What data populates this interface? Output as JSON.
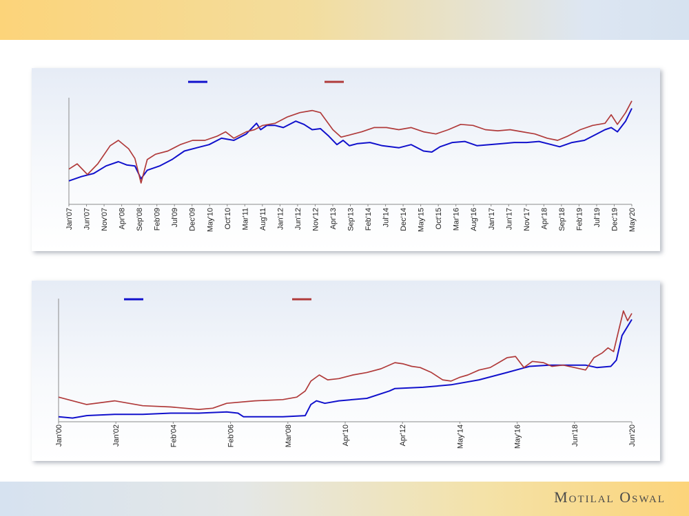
{
  "footer": {
    "brand": "Motilal Oswal"
  },
  "colors": {
    "series_blue": "#1010cc",
    "series_red": "#b03a3a",
    "axis": "#8a8a8a"
  },
  "chart_data": [
    {
      "type": "line",
      "title": "",
      "xlabel": "",
      "ylabel": "",
      "x_ticks": [
        "Jan'07",
        "Jun'07",
        "Nov'07",
        "Apr'08",
        "Sep'08",
        "Feb'09",
        "Jul'09",
        "Dec'09",
        "May'10",
        "Oct'10",
        "Mar'11",
        "Aug'11",
        "Jan'12",
        "Jun'12",
        "Nov'12",
        "Apr'13",
        "Sep'13",
        "Feb'14",
        "Jul'14",
        "Dec'14",
        "May'15",
        "Oct'15",
        "Mar'16",
        "Aug'16",
        "Jan'17",
        "Jun'17",
        "Nov'17",
        "Apr'18",
        "Sep'18",
        "Feb'19",
        "Jul'19",
        "Dec'19",
        "May'20"
      ],
      "x_range": [
        2007.0,
        2020.65
      ],
      "ylim": [
        0,
        100
      ],
      "legend": "top",
      "grid": false,
      "series": [
        {
          "color": "#1010cc",
          "x": [
            2007.0,
            2007.3,
            2007.6,
            2007.9,
            2008.2,
            2008.4,
            2008.6,
            2008.75,
            2008.9,
            2009.2,
            2009.5,
            2009.8,
            2010.1,
            2010.4,
            2010.7,
            2011.0,
            2011.3,
            2011.55,
            2011.65,
            2011.8,
            2012.0,
            2012.2,
            2012.5,
            2012.7,
            2012.9,
            2013.1,
            2013.3,
            2013.5,
            2013.65,
            2013.8,
            2014.0,
            2014.3,
            2014.6,
            2015.0,
            2015.3,
            2015.6,
            2015.8,
            2016.0,
            2016.3,
            2016.6,
            2016.9,
            2017.2,
            2017.5,
            2017.8,
            2018.1,
            2018.4,
            2018.7,
            2018.9,
            2019.2,
            2019.5,
            2019.8,
            2020.0,
            2020.15,
            2020.3,
            2020.5,
            2020.65
          ],
          "y": [
            22,
            26,
            29,
            36,
            40,
            37,
            36,
            24,
            32,
            36,
            42,
            50,
            53,
            56,
            62,
            60,
            66,
            76,
            70,
            74,
            74,
            72,
            78,
            75,
            70,
            71,
            64,
            56,
            60,
            55,
            57,
            58,
            55,
            53,
            56,
            50,
            49,
            54,
            58,
            59,
            55,
            56,
            57,
            58,
            58,
            59,
            56,
            54,
            58,
            60,
            66,
            70,
            72,
            68,
            78,
            90
          ]
        },
        {
          "color": "#b03a3a",
          "x": [
            2007.0,
            2007.2,
            2007.45,
            2007.7,
            2008.0,
            2008.2,
            2008.45,
            2008.6,
            2008.75,
            2008.9,
            2009.1,
            2009.4,
            2009.7,
            2010.0,
            2010.3,
            2010.6,
            2010.8,
            2011.0,
            2011.3,
            2011.5,
            2011.7,
            2012.0,
            2012.3,
            2012.6,
            2012.9,
            2013.1,
            2013.25,
            2013.4,
            2013.6,
            2013.8,
            2014.1,
            2014.4,
            2014.7,
            2015.0,
            2015.3,
            2015.6,
            2015.9,
            2016.2,
            2016.5,
            2016.8,
            2017.1,
            2017.4,
            2017.7,
            2018.0,
            2018.3,
            2018.6,
            2018.85,
            2019.1,
            2019.4,
            2019.7,
            2020.0,
            2020.15,
            2020.3,
            2020.5,
            2020.65
          ],
          "y": [
            33,
            38,
            28,
            38,
            55,
            60,
            52,
            43,
            20,
            42,
            47,
            50,
            56,
            60,
            60,
            64,
            68,
            62,
            68,
            70,
            74,
            76,
            82,
            86,
            88,
            86,
            78,
            70,
            63,
            65,
            68,
            72,
            72,
            70,
            72,
            68,
            66,
            70,
            75,
            74,
            70,
            69,
            70,
            68,
            66,
            62,
            60,
            64,
            70,
            74,
            76,
            84,
            75,
            86,
            97
          ]
        }
      ]
    },
    {
      "type": "line",
      "title": "",
      "xlabel": "",
      "ylabel": "",
      "x_ticks": [
        "Jan'00",
        "Jan'02",
        "Feb'04",
        "Feb'06",
        "Mar'08",
        "Apr'10",
        "Apr'12",
        "May'14",
        "May'16",
        "Jun'18",
        "Jun'20"
      ],
      "x_range": [
        2000.0,
        2020.45
      ],
      "ylim": [
        0,
        100
      ],
      "legend": "top",
      "grid": false,
      "series": [
        {
          "color": "#1010cc",
          "x": [
            2000.0,
            2000.5,
            2001.0,
            2002.0,
            2003.0,
            2004.0,
            2005.0,
            2006.0,
            2006.4,
            2006.6,
            2007.0,
            2008.0,
            2008.8,
            2009.0,
            2009.2,
            2009.5,
            2010.0,
            2011.0,
            2011.8,
            2012.0,
            2013.0,
            2014.0,
            2015.0,
            2016.0,
            2016.8,
            2017.5,
            2018.0,
            2018.8,
            2019.2,
            2019.7,
            2019.9,
            2020.1,
            2020.45
          ],
          "y": [
            4,
            3,
            5,
            6,
            6,
            7,
            7,
            8,
            7,
            4,
            4,
            4,
            5,
            14,
            17,
            15,
            17,
            19,
            25,
            27,
            28,
            30,
            34,
            40,
            45,
            46,
            46,
            46,
            44,
            45,
            50,
            70,
            83
          ]
        },
        {
          "color": "#b03a3a",
          "x": [
            2000.0,
            2001.0,
            2002.0,
            2003.0,
            2004.0,
            2005.0,
            2005.5,
            2006.0,
            2007.0,
            2008.0,
            2008.5,
            2008.8,
            2009.0,
            2009.3,
            2009.6,
            2010.0,
            2010.5,
            2011.0,
            2011.5,
            2012.0,
            2012.3,
            2012.6,
            2012.9,
            2013.3,
            2013.7,
            2014.0,
            2014.3,
            2014.6,
            2015.0,
            2015.4,
            2015.7,
            2016.0,
            2016.3,
            2016.6,
            2016.9,
            2017.3,
            2017.6,
            2018.0,
            2018.4,
            2018.8,
            2019.1,
            2019.4,
            2019.6,
            2019.8,
            2020.0,
            2020.15,
            2020.3,
            2020.45
          ],
          "y": [
            20,
            14,
            17,
            13,
            12,
            10,
            11,
            15,
            17,
            18,
            20,
            25,
            33,
            38,
            34,
            35,
            38,
            40,
            43,
            48,
            47,
            45,
            44,
            40,
            34,
            33,
            36,
            38,
            42,
            44,
            48,
            52,
            53,
            44,
            49,
            48,
            45,
            46,
            44,
            42,
            52,
            56,
            60,
            57,
            76,
            90,
            82,
            88
          ]
        }
      ]
    }
  ]
}
